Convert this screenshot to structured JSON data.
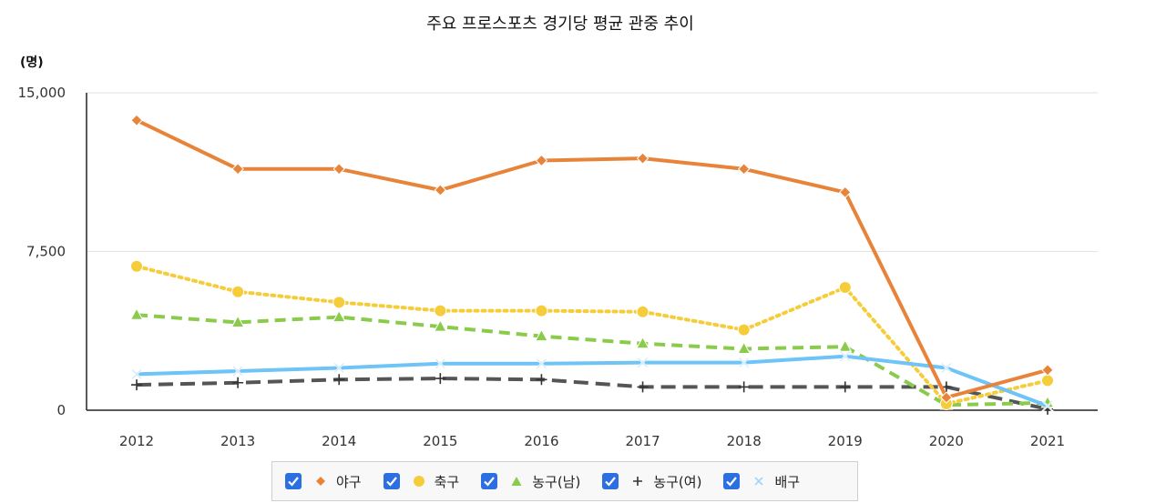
{
  "chart_data": {
    "type": "line",
    "title": "주요 프로스포츠 경기당 평균 관중 추이",
    "unit_label": "(명)",
    "categories": [
      "2012",
      "2013",
      "2014",
      "2015",
      "2016",
      "2017",
      "2018",
      "2019",
      "2020",
      "2021"
    ],
    "ylim": [
      0,
      15000
    ],
    "yticks": [
      "15,000",
      "7,500",
      "0"
    ],
    "ytick_values": [
      15000,
      7500,
      0
    ],
    "grid": true,
    "legend_position": "bottom",
    "series": [
      {
        "name": "야구",
        "values": [
          13700,
          11400,
          11400,
          10400,
          11800,
          11900,
          11400,
          10300,
          600,
          1900
        ],
        "color": "#e8843a",
        "marker": "diamond",
        "dash": "solid"
      },
      {
        "name": "축구",
        "values": [
          6800,
          5600,
          5100,
          4700,
          4700,
          4650,
          3800,
          5800,
          300,
          1400
        ],
        "color": "#f5cd3b",
        "marker": "circle",
        "dash": "dotted"
      },
      {
        "name": "농구(남)",
        "values": [
          4500,
          4150,
          4400,
          3950,
          3500,
          3150,
          2900,
          3000,
          250,
          350
        ],
        "color": "#8acb4b",
        "marker": "triangle",
        "dash": "dashed"
      },
      {
        "name": "농구(여)",
        "values": [
          1200,
          1300,
          1450,
          1500,
          1450,
          1100,
          1100,
          1100,
          1100,
          50
        ],
        "color": "#555555",
        "marker": "plus",
        "dash": "longdash"
      },
      {
        "name": "배구",
        "values": [
          1700,
          1850,
          2000,
          2200,
          2200,
          2250,
          2250,
          2550,
          2000,
          200
        ],
        "color": "#6ec4f7",
        "marker": "x",
        "dash": "solid"
      }
    ]
  }
}
